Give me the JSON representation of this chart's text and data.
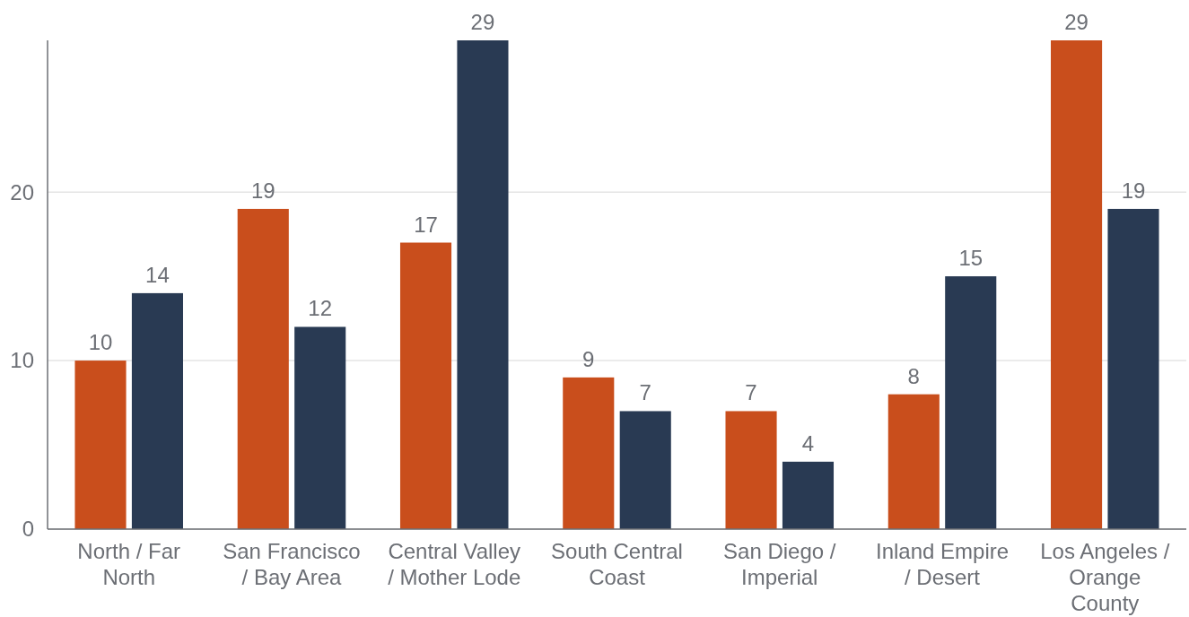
{
  "chart_data": {
    "type": "bar",
    "categories": [
      "North / Far North",
      "San Francisco / Bay Area",
      "Central Valley / Mother Lode",
      "South Central Coast",
      "San Diego / Imperial",
      "Inland Empire / Desert",
      "Los Angeles / Orange County"
    ],
    "series": [
      {
        "color": "#c94e1c",
        "values": [
          10,
          19,
          17,
          9,
          7,
          8,
          29
        ]
      },
      {
        "color": "#293a53",
        "values": [
          14,
          12,
          29,
          7,
          4,
          15,
          19
        ]
      }
    ],
    "ylim": [
      0,
      29
    ],
    "yticks": [
      0,
      10,
      20
    ],
    "grid": "y",
    "data_labels": true
  }
}
